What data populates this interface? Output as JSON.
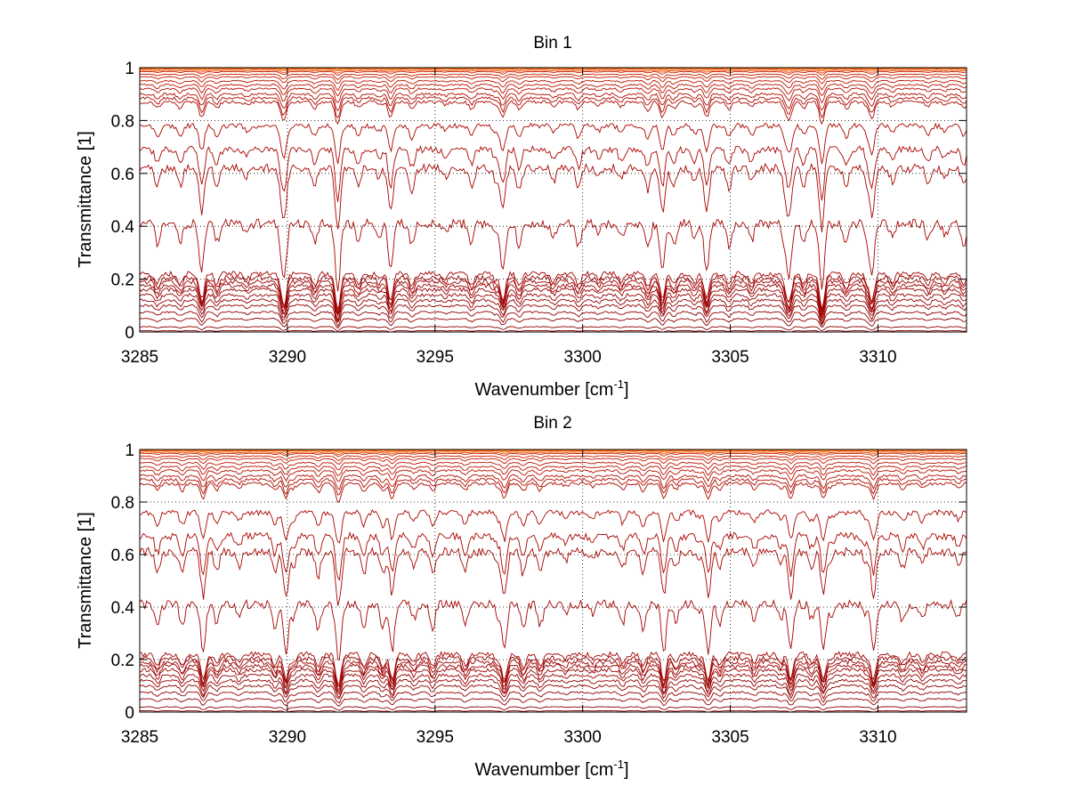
{
  "chart_data": [
    {
      "type": "line",
      "title": "Bin 1",
      "xlabel": "Wavenumber [cm",
      "xlabel_sup": "-1",
      "xlabel_end": "]",
      "ylabel": "Transmittance [1]",
      "xlim": [
        3285,
        3313
      ],
      "ylim": [
        0,
        1
      ],
      "xticks": [
        3285,
        3290,
        3295,
        3300,
        3305,
        3310
      ],
      "yticks": [
        0,
        0.2,
        0.4,
        0.6,
        0.8,
        1
      ],
      "xtick_labels": [
        "3285",
        "3290",
        "3295",
        "3300",
        "3305",
        "3310"
      ],
      "ytick_labels": [
        "0",
        "0.2",
        "0.4",
        "0.6",
        "0.8",
        "1"
      ],
      "grid": true,
      "series_levels": [
        1.0,
        0.998,
        0.995,
        0.99,
        0.985,
        0.975,
        0.965,
        0.95,
        0.935,
        0.92,
        0.9,
        0.885,
        0.87,
        0.78,
        0.69,
        0.62,
        0.41,
        0.22,
        0.205,
        0.19,
        0.175,
        0.16,
        0.14,
        0.12,
        0.1,
        0.075,
        0.05,
        0.02,
        0.005
      ],
      "series_colors": [
        "#ff7f00",
        "#ff6a00",
        "#f25c05",
        "#e84a00",
        "#cc2200",
        "#c81e00",
        "#c41a00",
        "#c01600",
        "#bb1200",
        "#b81000",
        "#b40c00",
        "#b00a00",
        "#ad0800",
        "#aa0600",
        "#a80500",
        "#a60400",
        "#a40300",
        "#a20200",
        "#a00100",
        "#9e0000",
        "#9c0000",
        "#9a0000",
        "#980000",
        "#960000",
        "#940000",
        "#920000",
        "#900000",
        "#8e0000",
        "#8c0000"
      ]
    },
    {
      "type": "line",
      "title": "Bin 2",
      "xlabel": "Wavenumber [cm",
      "xlabel_sup": "-1",
      "xlabel_end": "]",
      "ylabel": "Transmittance [1]",
      "xlim": [
        3285,
        3313
      ],
      "ylim": [
        0,
        1
      ],
      "xticks": [
        3285,
        3290,
        3295,
        3300,
        3305,
        3310
      ],
      "yticks": [
        0,
        0.2,
        0.4,
        0.6,
        0.8,
        1
      ],
      "xtick_labels": [
        "3285",
        "3290",
        "3295",
        "3300",
        "3305",
        "3310"
      ],
      "ytick_labels": [
        "0",
        "0.2",
        "0.4",
        "0.6",
        "0.8",
        "1"
      ],
      "grid": true,
      "series_levels": [
        1.0,
        0.998,
        0.995,
        0.99,
        0.985,
        0.975,
        0.965,
        0.95,
        0.935,
        0.92,
        0.9,
        0.885,
        0.87,
        0.76,
        0.67,
        0.61,
        0.41,
        0.22,
        0.205,
        0.19,
        0.175,
        0.16,
        0.14,
        0.12,
        0.1,
        0.075,
        0.05,
        0.02,
        0.005
      ],
      "series_colors": [
        "#ff7f00",
        "#ff6a00",
        "#f25c05",
        "#e84a00",
        "#cc2200",
        "#c81e00",
        "#c41a00",
        "#c01600",
        "#bb1200",
        "#b81000",
        "#b40c00",
        "#b00a00",
        "#ad0800",
        "#aa0600",
        "#a80500",
        "#a60400",
        "#a40300",
        "#a20200",
        "#a00100",
        "#9e0000",
        "#9c0000",
        "#9a0000",
        "#980000",
        "#960000",
        "#940000",
        "#920000",
        "#900000",
        "#8e0000",
        "#8c0000"
      ]
    }
  ]
}
